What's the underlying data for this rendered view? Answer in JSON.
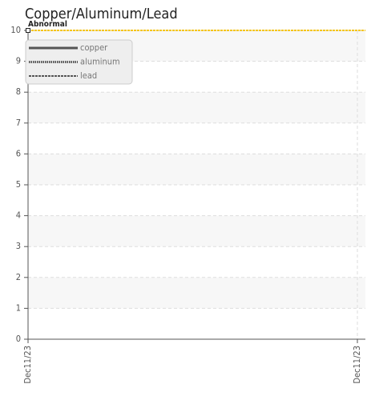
{
  "chart_data": {
    "type": "line",
    "title": "Copper/Aluminum/Lead",
    "categories": [
      "Dec11/23",
      "Dec11/23"
    ],
    "series": [
      {
        "name": "copper",
        "color": "#555555",
        "style": "solid",
        "values": [
          null,
          null
        ]
      },
      {
        "name": "aluminum",
        "color": "#555555",
        "style": "dotted",
        "values": [
          null,
          null
        ]
      },
      {
        "name": "lead",
        "color": "#555555",
        "style": "dashed",
        "values": [
          null,
          null
        ]
      }
    ],
    "annotations": [
      {
        "label": "Abnormal",
        "value": 10,
        "color": "#f5c518"
      }
    ],
    "ylim": [
      0,
      10
    ],
    "yticks": [
      0,
      1,
      2,
      3,
      4,
      5,
      6,
      7,
      8,
      9,
      10
    ],
    "grid": true,
    "legend": "top-left"
  }
}
